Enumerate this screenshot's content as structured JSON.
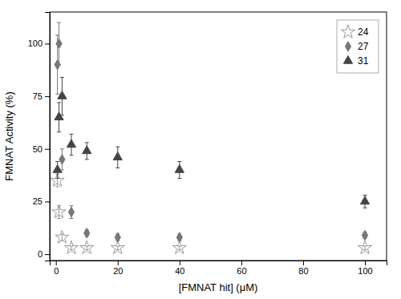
{
  "chart_data": {
    "type": "scatter",
    "xlabel": "[FMNAT hit] (μM)",
    "ylabel": "FMNAT Activity (%)",
    "xlim": [
      -2,
      107
    ],
    "ylim": [
      -3,
      115
    ],
    "xticks": [
      0,
      20,
      40,
      60,
      80,
      100
    ],
    "yticks": [
      0,
      25,
      50,
      75,
      100
    ],
    "legend": "upper right",
    "series": [
      {
        "name": "24",
        "color": "#999999",
        "marker": "star",
        "x": [
          0.5,
          1.0,
          2.0,
          5.0,
          10.0,
          20.0,
          40.0,
          100.0
        ],
        "values": [
          35,
          20,
          8,
          3,
          3,
          3,
          3,
          3
        ],
        "errors": [
          3,
          3,
          1.5,
          0.8,
          0.8,
          0.8,
          0.8,
          0.8
        ]
      },
      {
        "name": "27",
        "color": "#777777",
        "marker": "diamond",
        "x": [
          0.5,
          1.0,
          2.0,
          5.0,
          10.0,
          20.0,
          40.0,
          100.0
        ],
        "values": [
          90,
          100,
          45,
          20,
          10,
          8,
          8,
          9
        ],
        "errors": [
          14,
          10,
          5,
          3,
          1.5,
          1.5,
          1.5,
          1.5
        ]
      },
      {
        "name": "31",
        "color": "#444444",
        "marker": "triangle",
        "x": [
          0.5,
          1.0,
          2.0,
          5.0,
          10.0,
          20.0,
          40.0,
          100.0
        ],
        "values": [
          40,
          65,
          75,
          52,
          49,
          46,
          40,
          25
        ],
        "errors": [
          4,
          7,
          9,
          5,
          4,
          5,
          4,
          3
        ]
      }
    ]
  }
}
